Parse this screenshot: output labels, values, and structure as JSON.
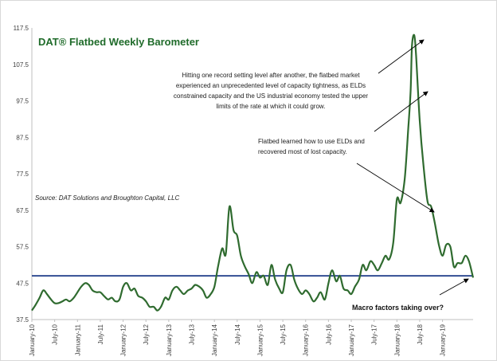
{
  "chart_data": {
    "type": "line",
    "title": "DAT® Flatbed Weekly Barometer",
    "source": "Source: DAT Solutions and Broughton Capital, LLC",
    "xlabel": "",
    "ylabel": "",
    "ylim": [
      37.5,
      117.5
    ],
    "yticks": [
      "37.5",
      "47.5",
      "57.5",
      "67.5",
      "77.5",
      "87.5",
      "97.5",
      "107.5",
      "117.5"
    ],
    "xticks": [
      "January-10",
      "July-10",
      "January-11",
      "July-11",
      "January-12",
      "July-12",
      "January-13",
      "July-13",
      "January-14",
      "July-14",
      "January-15",
      "July-15",
      "January-16",
      "July-16",
      "January-17",
      "July-17",
      "January-18",
      "July-18",
      "January-19"
    ],
    "reference_line": 49.5,
    "grid": false,
    "legend": "none",
    "series": [
      {
        "x": [
          2010.0,
          2010.08,
          2010.17,
          2010.25,
          2010.33,
          2010.42,
          2010.5,
          2010.58,
          2010.67,
          2010.75,
          2010.83,
          2010.92,
          2011.0,
          2011.08,
          2011.17,
          2011.25,
          2011.33,
          2011.42,
          2011.5,
          2011.58,
          2011.67,
          2011.75,
          2011.83,
          2011.92,
          2012.0,
          2012.08,
          2012.17,
          2012.25,
          2012.33,
          2012.42,
          2012.5,
          2012.58,
          2012.67,
          2012.75,
          2012.83,
          2012.92,
          2013.0,
          2013.08,
          2013.17,
          2013.25,
          2013.33,
          2013.42,
          2013.5,
          2013.58,
          2013.67,
          2013.75,
          2013.83,
          2013.92,
          2014.0,
          2014.08,
          2014.17,
          2014.25,
          2014.33,
          2014.42,
          2014.5,
          2014.58,
          2014.67,
          2014.75,
          2014.83,
          2014.92,
          2015.0,
          2015.08,
          2015.17,
          2015.25,
          2015.33,
          2015.42,
          2015.5,
          2015.58,
          2015.67,
          2015.75,
          2015.83,
          2015.92,
          2016.0,
          2016.08,
          2016.17,
          2016.25,
          2016.33,
          2016.42,
          2016.5,
          2016.58,
          2016.67,
          2016.75,
          2016.83,
          2016.92,
          2017.0,
          2017.08,
          2017.17,
          2017.25,
          2017.33,
          2017.42,
          2017.5,
          2017.58,
          2017.67,
          2017.75,
          2017.83,
          2017.92,
          2018.0,
          2018.08,
          2018.17,
          2018.25,
          2018.3,
          2018.33,
          2018.38,
          2018.42,
          2018.5,
          2018.58,
          2018.67,
          2018.75,
          2018.83,
          2018.92,
          2019.0,
          2019.08,
          2019.17,
          2019.25,
          2019.33,
          2019.42,
          2019.5,
          2019.58,
          2019.67
        ],
        "values": [
          40.0,
          41.5,
          43.5,
          45.5,
          44.5,
          43.0,
          42.0,
          42.0,
          42.5,
          43.0,
          42.5,
          43.5,
          45.0,
          46.5,
          47.5,
          47.0,
          45.5,
          45.0,
          45.0,
          44.0,
          43.0,
          43.5,
          42.5,
          43.0,
          46.5,
          47.5,
          45.5,
          46.0,
          44.0,
          43.5,
          42.5,
          41.0,
          41.0,
          40.0,
          41.0,
          43.5,
          43.0,
          45.5,
          46.5,
          45.5,
          44.5,
          45.5,
          46.0,
          47.0,
          46.5,
          45.5,
          43.5,
          44.5,
          46.5,
          52.0,
          57.0,
          55.5,
          68.5,
          62.0,
          60.5,
          55.0,
          52.0,
          50.0,
          47.5,
          50.5,
          49.0,
          49.5,
          47.0,
          52.5,
          48.5,
          46.0,
          45.0,
          51.0,
          52.5,
          48.5,
          46.0,
          44.5,
          45.5,
          44.5,
          42.5,
          43.5,
          45.0,
          43.0,
          47.5,
          51.0,
          48.0,
          49.5,
          46.0,
          45.5,
          44.5,
          46.5,
          48.5,
          52.5,
          51.0,
          53.5,
          52.5,
          51.0,
          53.0,
          55.0,
          54.0,
          58.5,
          70.5,
          69.5,
          76.0,
          90.0,
          100.0,
          112.5,
          115.5,
          110.0,
          92.0,
          80.0,
          70.0,
          68.5,
          64.0,
          58.0,
          55.0,
          58.0,
          57.5,
          52.0,
          53.0,
          53.0,
          55.0,
          53.5,
          49.0
        ]
      }
    ],
    "annotations": [
      "Hitting one record setting level after another, the flatbed market",
      "experienced an unprecedented level of capacity tightness, as ELDs",
      "constrained capacity and the US industrial economy tested the upper",
      "limits of the rate at which it could grow.",
      "Flatbed learned how to use ELDs and",
      "recovered most of lost capacity.",
      "Macro factors taking over?"
    ]
  }
}
